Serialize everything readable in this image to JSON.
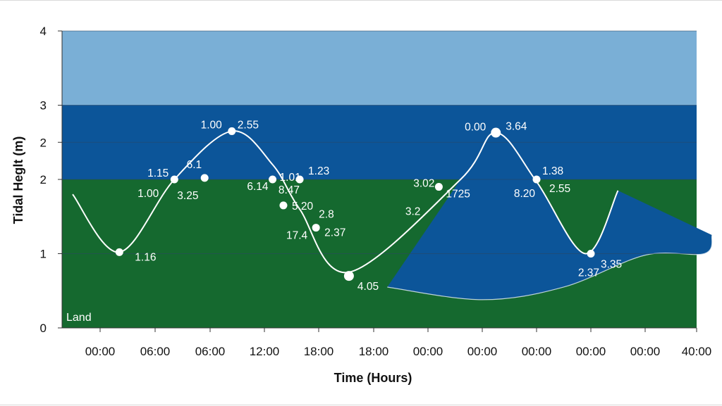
{
  "chart_data": {
    "type": "area",
    "xlabel": "Time (Hours)",
    "ylabel": "Tidal Heglt (m)",
    "ylim": [
      0,
      4
    ],
    "y_tick_labels": [
      "0",
      "1",
      "2",
      "2",
      "3",
      "4"
    ],
    "x_tick_labels": [
      "00:00",
      "06:00",
      "06:00",
      "12:00",
      "18:00",
      "18:00",
      "00:00",
      "00:00",
      "00:00",
      "00:00",
      "00:00",
      "40:00"
    ],
    "grid": true,
    "zones": [
      {
        "name": "Land",
        "label": "Land",
        "color": "#15692f",
        "lower": 0,
        "upper": 2
      },
      {
        "name": "water-deep",
        "label": "",
        "color": "#0c5599",
        "lower": 2,
        "upper": 3
      },
      {
        "name": "water-shallow",
        "label": "",
        "color": "#7aafd6",
        "lower": 3,
        "upper": 4
      }
    ],
    "land_boundary": [
      {
        "x": 5.25,
        "y": 0.55
      },
      {
        "x": 7.0,
        "y": 0.38
      },
      {
        "x": 8.5,
        "y": 0.55
      },
      {
        "x": 10.0,
        "y": 0.98
      },
      {
        "x": 11.15,
        "y": 1.0
      },
      {
        "x": 11.3,
        "y": 1.25
      }
    ],
    "series": [
      {
        "name": "",
        "color": "#ffffff",
        "curve": [
          {
            "x": -0.5,
            "y": 1.8
          },
          {
            "x": 0.35,
            "y": 1.02
          },
          {
            "x": 1.35,
            "y": 2.0
          },
          {
            "x": 2.4,
            "y": 2.65
          },
          {
            "x": 3.15,
            "y": 2.2
          },
          {
            "x": 3.65,
            "y": 1.6
          },
          {
            "x": 4.55,
            "y": 0.75
          },
          {
            "x": 6.6,
            "y": 2.0
          },
          {
            "x": 7.25,
            "y": 2.63
          },
          {
            "x": 8.0,
            "y": 1.97
          },
          {
            "x": 8.9,
            "y": 1.0
          },
          {
            "x": 9.5,
            "y": 1.85
          }
        ],
        "points": [
          {
            "x": 0.35,
            "y": 1.02,
            "labels": [
              {
                "text": "1.16",
                "dx": 22,
                "dy": 12,
                "anchor": "start"
              }
            ]
          },
          {
            "x": 1.35,
            "y": 2.0,
            "labels": [
              {
                "text": "1.15",
                "dx": -8,
                "dy": -4,
                "anchor": "end"
              },
              {
                "text": "1.00",
                "dx": -22,
                "dy": 25,
                "anchor": "end"
              },
              {
                "text": "3.25",
                "dx": 4,
                "dy": 28,
                "anchor": "start"
              }
            ]
          },
          {
            "x": 1.9,
            "y": 2.02,
            "labels": [
              {
                "text": "6.1",
                "dx": -4,
                "dy": -14,
                "anchor": "end"
              }
            ]
          },
          {
            "x": 2.4,
            "y": 2.65,
            "labels": [
              {
                "text": "1.00",
                "dx": -14,
                "dy": -4,
                "anchor": "end"
              },
              {
                "text": "2.55",
                "dx": 8,
                "dy": -4,
                "anchor": "start"
              }
            ]
          },
          {
            "x": 3.15,
            "y": 2.0,
            "labels": [
              {
                "text": "1.01",
                "dx": 10,
                "dy": 2,
                "anchor": "start"
              },
              {
                "text": "6.14",
                "dx": -6,
                "dy": 15,
                "anchor": "end"
              }
            ]
          },
          {
            "x": 3.35,
            "y": 1.65,
            "labels": [
              {
                "text": "5.20",
                "dx": 12,
                "dy": 6,
                "anchor": "start"
              }
            ]
          },
          {
            "x": 3.65,
            "y": 2.0,
            "labels": [
              {
                "text": "1.23",
                "dx": 12,
                "dy": -7,
                "anchor": "start"
              },
              {
                "text": "8.47",
                "dx": 0,
                "dy": 20,
                "anchor": "end"
              }
            ]
          },
          {
            "x": 3.95,
            "y": 1.35,
            "labels": [
              {
                "text": "2.8",
                "dx": 4,
                "dy": -14,
                "anchor": "start"
              },
              {
                "text": "17.4",
                "dx": -12,
                "dy": 16,
                "anchor": "end"
              },
              {
                "text": "2.37",
                "dx": 12,
                "dy": 12,
                "anchor": "start"
              }
            ]
          },
          {
            "x": 4.55,
            "y": 0.7,
            "labels": [
              {
                "text": "4.05",
                "dx": 12,
                "dy": 20,
                "anchor": "start"
              }
            ]
          },
          {
            "x": 6.2,
            "y": 1.9,
            "labels": [
              {
                "text": "3.02",
                "dx": -6,
                "dy": 0,
                "anchor": "end"
              },
              {
                "text": "1725",
                "dx": 10,
                "dy": 15,
                "anchor": "start"
              },
              {
                "text": "3.2",
                "dx": -26,
                "dy": 40,
                "anchor": "end"
              }
            ]
          },
          {
            "x": 7.25,
            "y": 2.63,
            "labels": [
              {
                "text": "0.00",
                "dx": -14,
                "dy": -3,
                "anchor": "end"
              },
              {
                "text": "3.64",
                "dx": 14,
                "dy": -4,
                "anchor": "start"
              }
            ]
          },
          {
            "x": 8.0,
            "y": 2.0,
            "labels": [
              {
                "text": "1.38",
                "dx": 8,
                "dy": -7,
                "anchor": "start"
              },
              {
                "text": "2.55",
                "dx": 18,
                "dy": 18,
                "anchor": "start"
              },
              {
                "text": "8.20",
                "dx": -2,
                "dy": 25,
                "anchor": "end"
              }
            ]
          },
          {
            "x": 9.0,
            "y": 1.0,
            "labels": [
              {
                "text": "3.35",
                "dx": 14,
                "dy": 20,
                "anchor": "start"
              },
              {
                "text": "2.37",
                "dx": 12,
                "dy": 32,
                "anchor": "end"
              }
            ]
          }
        ]
      }
    ]
  }
}
